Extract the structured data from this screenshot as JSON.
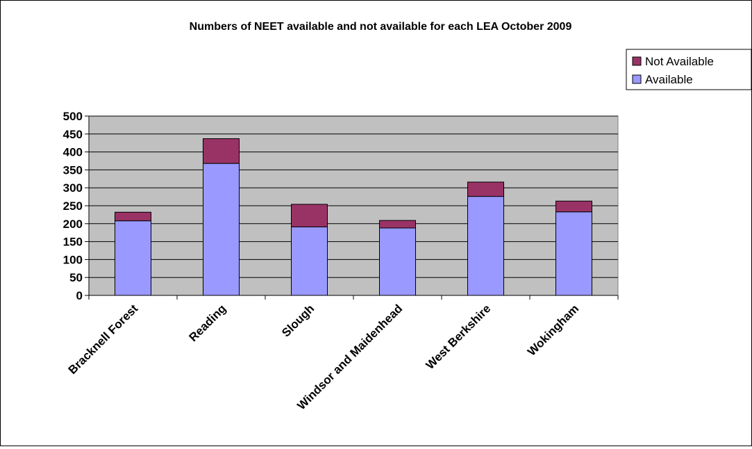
{
  "chart_data": {
    "type": "bar",
    "stacked": true,
    "title": "Numbers of NEET available and not available for each LEA October 2009",
    "xlabel": "",
    "ylabel": "",
    "categories": [
      "Bracknell Forest",
      "Reading",
      "Slough",
      "Windsor and Maidenhead",
      "West Berkshire",
      "Wokingham"
    ],
    "series": [
      {
        "name": "Available",
        "values": [
          208,
          368,
          191,
          188,
          276,
          233
        ],
        "color": "#9999ff"
      },
      {
        "name": "Not Available",
        "values": [
          24,
          69,
          63,
          21,
          40,
          30
        ],
        "color": "#993366"
      }
    ],
    "ylim": [
      0,
      500
    ],
    "yticks": [
      "0",
      "50",
      "100",
      "150",
      "200",
      "250",
      "300",
      "350",
      "400",
      "450",
      "500"
    ],
    "grid": true,
    "legend_position": "top-right",
    "legend_items": [
      {
        "name": "Not Available",
        "color": "#993366"
      },
      {
        "name": "Available",
        "color": "#9999ff"
      }
    ],
    "plot_background": "#c0c0c0"
  }
}
